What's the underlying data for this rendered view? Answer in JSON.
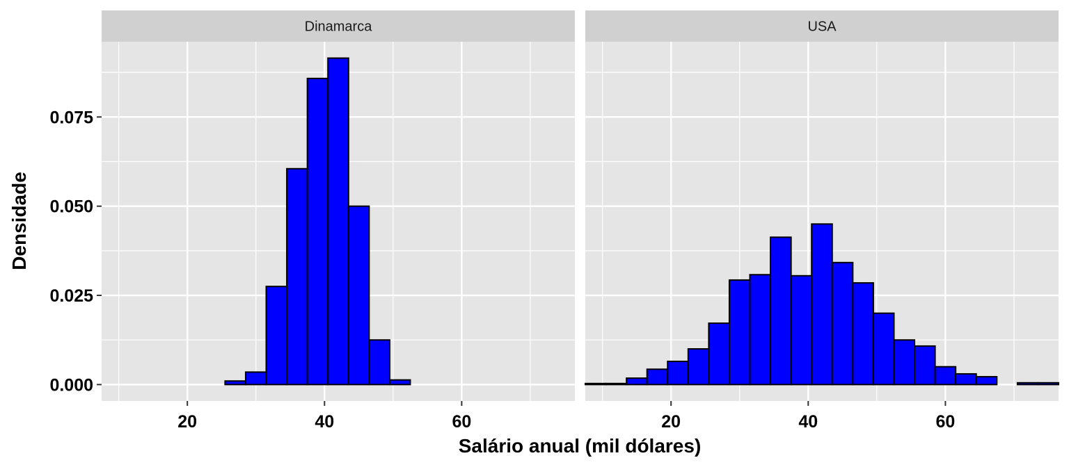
{
  "chart_data": {
    "type": "bar",
    "xlabel": "Salário anual (mil dólares)",
    "ylabel": "Densidade",
    "xlim": [
      7.5,
      76.5
    ],
    "ylim": [
      -0.0046,
      0.0961
    ],
    "x_ticks": [
      {
        "value": 20,
        "label": "20"
      },
      {
        "value": 40,
        "label": "40"
      },
      {
        "value": 60,
        "label": "60"
      }
    ],
    "x_minor_ticks": [
      10,
      30,
      50,
      70
    ],
    "y_ticks": [
      {
        "value": 0,
        "label": "0.000"
      },
      {
        "value": 0.025,
        "label": "0.025"
      },
      {
        "value": 0.05,
        "label": "0.050"
      },
      {
        "value": 0.075,
        "label": "0.075"
      }
    ],
    "y_minor_ticks": [
      0.0125,
      0.0375,
      0.0625,
      0.0875
    ],
    "bin_width": 3,
    "bin_centers": [
      9,
      12,
      15,
      18,
      21,
      24,
      27,
      30,
      33,
      36,
      39,
      42,
      45,
      48,
      51,
      54,
      57,
      60,
      63,
      66,
      69,
      72,
      75
    ],
    "colors": {
      "fill": "#0000ff",
      "outline": "#000000",
      "panel_bg": "#e5e5e5",
      "strip_bg": "#d0d0d0",
      "grid": "#ffffff"
    },
    "panels": [
      {
        "label": "Dinamarca",
        "values": [
          0,
          0,
          0,
          0,
          0,
          0,
          0.001,
          0.0035,
          0.0275,
          0.0605,
          0.0858,
          0.0915,
          0.05,
          0.0125,
          0.0013,
          0,
          0,
          0,
          0,
          0,
          0,
          0,
          0
        ]
      },
      {
        "label": "USA",
        "values": [
          0.0003,
          0.0003,
          0.0018,
          0.0043,
          0.0065,
          0.01,
          0.0172,
          0.0293,
          0.0308,
          0.0413,
          0.0305,
          0.045,
          0.0342,
          0.0285,
          0.02,
          0.0125,
          0.0108,
          0.005,
          0.003,
          0.0022,
          0,
          0.0005,
          0.0005
        ]
      }
    ]
  }
}
